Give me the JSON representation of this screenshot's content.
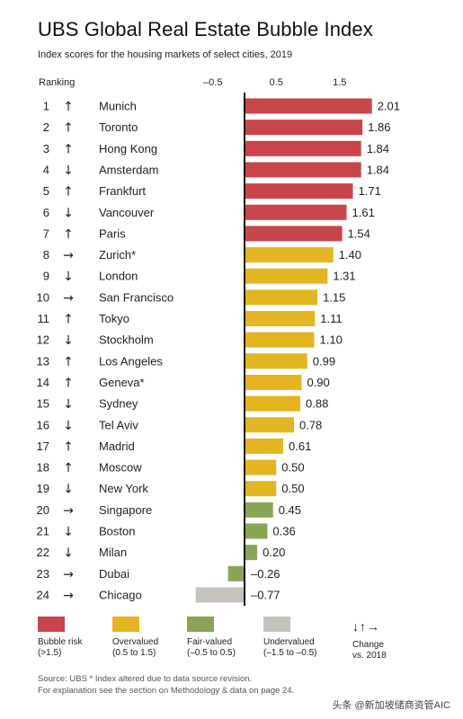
{
  "title": "UBS Global Real Estate Bubble Index",
  "subtitle": "Index scores for the housing markets of select cities, 2019",
  "ranking_label": "Ranking",
  "colors": {
    "bubble": "#c8454c",
    "overvalued": "#e3b520",
    "fair": "#8aa456",
    "under": "#c6c3bd"
  },
  "arrows": {
    "up": "↑",
    "down": "↓",
    "right": "→"
  },
  "chart_data": {
    "type": "bar",
    "orientation": "horizontal",
    "xlim": [
      -1.3,
      2.2
    ],
    "xticks": [
      -0.5,
      0.5,
      1.5
    ],
    "xtick_labels": [
      "–0.5",
      "0.5",
      "1.5"
    ],
    "rows": [
      {
        "rank": "1",
        "change": "up",
        "city": "Munich",
        "value": 2.01,
        "label": "2.01",
        "category": "bubble"
      },
      {
        "rank": "2",
        "change": "up",
        "city": "Toronto",
        "value": 1.86,
        "label": "1.86",
        "category": "bubble"
      },
      {
        "rank": "3",
        "change": "up",
        "city": "Hong Kong",
        "value": 1.84,
        "label": "1.84",
        "category": "bubble"
      },
      {
        "rank": "4",
        "change": "down",
        "city": "Amsterdam",
        "value": 1.84,
        "label": "1.84",
        "category": "bubble"
      },
      {
        "rank": "5",
        "change": "up",
        "city": "Frankfurt",
        "value": 1.71,
        "label": "1.71",
        "category": "bubble"
      },
      {
        "rank": "6",
        "change": "down",
        "city": "Vancouver",
        "value": 1.61,
        "label": "1.61",
        "category": "bubble"
      },
      {
        "rank": "7",
        "change": "up",
        "city": "Paris",
        "value": 1.54,
        "label": "1.54",
        "category": "bubble"
      },
      {
        "rank": "8",
        "change": "right",
        "city": "Zurich*",
        "value": 1.4,
        "label": "1.40",
        "category": "overvalued"
      },
      {
        "rank": "9",
        "change": "down",
        "city": "London",
        "value": 1.31,
        "label": "1.31",
        "category": "overvalued"
      },
      {
        "rank": "10",
        "change": "right",
        "city": "San Francisco",
        "value": 1.15,
        "label": "1.15",
        "category": "overvalued"
      },
      {
        "rank": "11",
        "change": "up",
        "city": "Tokyo",
        "value": 1.11,
        "label": "1.11",
        "category": "overvalued"
      },
      {
        "rank": "12",
        "change": "down",
        "city": "Stockholm",
        "value": 1.1,
        "label": "1.10",
        "category": "overvalued"
      },
      {
        "rank": "13",
        "change": "up",
        "city": "Los Angeles",
        "value": 0.99,
        "label": "0.99",
        "category": "overvalued"
      },
      {
        "rank": "14",
        "change": "up",
        "city": "Geneva*",
        "value": 0.9,
        "label": "0.90",
        "category": "overvalued"
      },
      {
        "rank": "15",
        "change": "down",
        "city": "Sydney",
        "value": 0.88,
        "label": "0.88",
        "category": "overvalued"
      },
      {
        "rank": "16",
        "change": "down",
        "city": "Tel Aviv",
        "value": 0.78,
        "label": "0.78",
        "category": "overvalued"
      },
      {
        "rank": "17",
        "change": "up",
        "city": "Madrid",
        "value": 0.61,
        "label": "0.61",
        "category": "overvalued"
      },
      {
        "rank": "18",
        "change": "up",
        "city": "Moscow",
        "value": 0.5,
        "label": "0.50",
        "category": "overvalued"
      },
      {
        "rank": "19",
        "change": "down",
        "city": "New York",
        "value": 0.5,
        "label": "0.50",
        "category": "overvalued"
      },
      {
        "rank": "20",
        "change": "right",
        "city": "Singapore",
        "value": 0.45,
        "label": "0.45",
        "category": "fair"
      },
      {
        "rank": "21",
        "change": "down",
        "city": "Boston",
        "value": 0.36,
        "label": "0.36",
        "category": "fair"
      },
      {
        "rank": "22",
        "change": "down",
        "city": "Milan",
        "value": 0.2,
        "label": "0.20",
        "category": "fair"
      },
      {
        "rank": "23",
        "change": "right",
        "city": "Dubai",
        "value": -0.26,
        "label": "–0.26",
        "category": "fair"
      },
      {
        "rank": "24",
        "change": "right",
        "city": "Chicago",
        "value": -0.77,
        "label": "–0.77",
        "category": "under"
      }
    ]
  },
  "legend": {
    "bubble": {
      "name": "Bubble risk",
      "range": "(>1.5)"
    },
    "overvalued": {
      "name": "Overvalued",
      "range": "(0.5 to 1.5)"
    },
    "fair": {
      "name": "Fair-valued",
      "range": "(–0.5 to 0.5)"
    },
    "under": {
      "name": "Undervalued",
      "range": "(–1.5 to –0.5)"
    },
    "change": {
      "arrows": "↓↑→",
      "name": "Change",
      "range": "vs. 2018"
    }
  },
  "footnote1": "Source: UBS  * Index altered due to data source revision.",
  "footnote2": "For explanation see the section on Methodology & data on page 24.",
  "watermark": "头条 @新加坡储商资管AIC"
}
